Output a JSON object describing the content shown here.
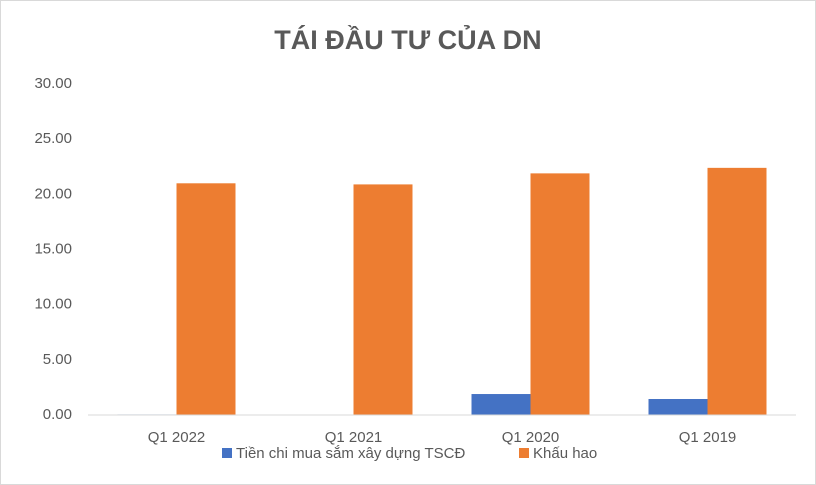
{
  "chart_data": {
    "type": "bar",
    "title": "TÁI ĐẦU TƯ CỦA DN",
    "categories": [
      "Q1 2022",
      "Q1 2021",
      "Q1 2020",
      "Q1 2019"
    ],
    "series": [
      {
        "name": "Tiền chi mua sắm xây dựng TSCĐ",
        "color": "#4472c4",
        "values": [
          0.05,
          0.03,
          1.9,
          1.45
        ]
      },
      {
        "name": "Khấu hao",
        "color": "#ed7d31",
        "values": [
          21.0,
          20.9,
          21.9,
          22.4
        ]
      }
    ],
    "ylim": [
      0,
      30
    ],
    "yticks": [
      {
        "value": 0,
        "label": "0.00"
      },
      {
        "value": 5,
        "label": "5.00"
      },
      {
        "value": 10,
        "label": "10.00"
      },
      {
        "value": 15,
        "label": "15.00"
      },
      {
        "value": 20,
        "label": "20.00"
      },
      {
        "value": 25,
        "label": "25.00"
      },
      {
        "value": 30,
        "label": "30.00"
      }
    ],
    "grid": false,
    "legend": "bottom"
  }
}
